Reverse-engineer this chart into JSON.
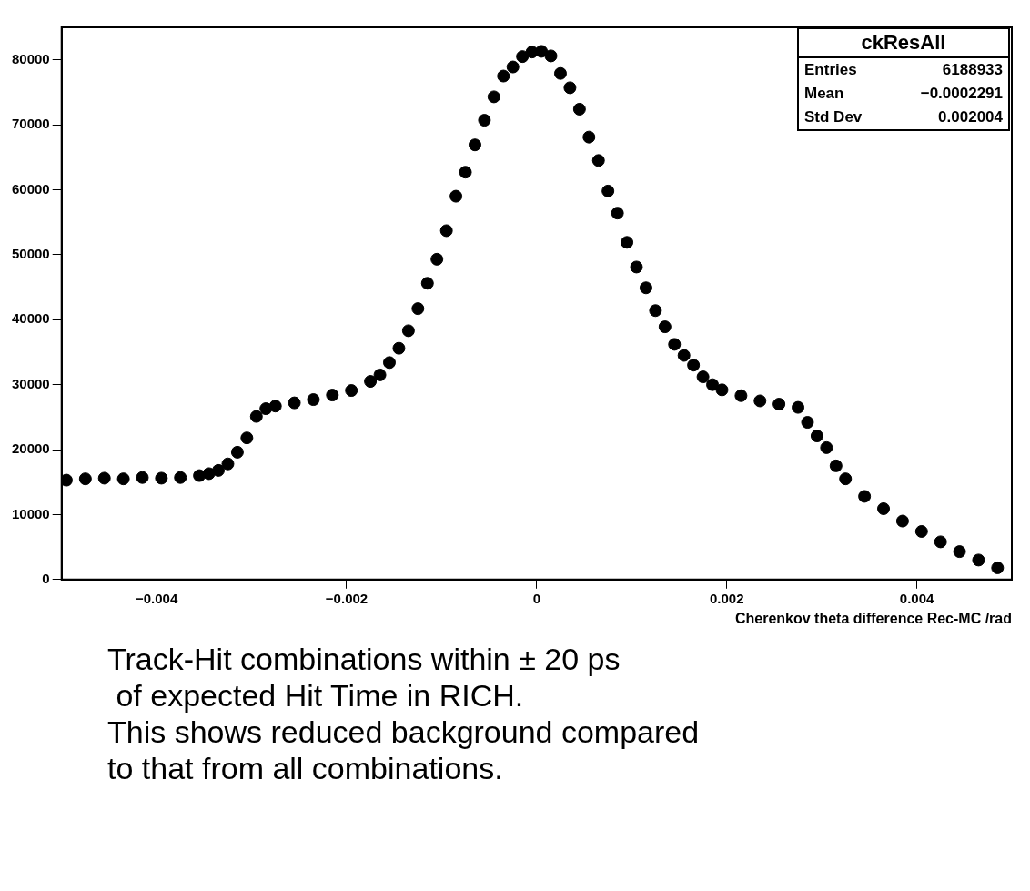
{
  "chart_data": {
    "type": "scatter",
    "title": "ckResAll",
    "xlabel": "Cherenkov theta difference Rec-MC /rad",
    "xlim": [
      -0.005,
      0.005
    ],
    "ylim": [
      0,
      85000
    ],
    "xticks": [
      {
        "value": -0.004,
        "label": "−0.004"
      },
      {
        "value": -0.002,
        "label": "−0.002"
      },
      0,
      0.002,
      0.004
    ],
    "yticks": [
      0,
      10000,
      20000,
      30000,
      40000,
      50000,
      60000,
      70000,
      80000
    ],
    "grid": false,
    "legend": false,
    "marker": "circle",
    "series": [
      {
        "color": "#000000",
        "x": [
          -0.00495,
          -0.00475,
          -0.00455,
          -0.00435,
          -0.00415,
          -0.00395,
          -0.00375,
          -0.00355,
          -0.00345,
          -0.00335,
          -0.00325,
          -0.00315,
          -0.00305,
          -0.00295,
          -0.00285,
          -0.00275,
          -0.00255,
          -0.00235,
          -0.00215,
          -0.00195,
          -0.00175,
          -0.00165,
          -0.00155,
          -0.00145,
          -0.00135,
          -0.00125,
          -0.00115,
          -0.00105,
          -0.00095,
          -0.00085,
          -0.00075,
          -0.00065,
          -0.00055,
          -0.00045,
          -0.00035,
          -0.00025,
          -0.00015,
          -5e-05,
          5e-05,
          0.00015,
          0.00025,
          0.00035,
          0.00045,
          0.00055,
          0.00065,
          0.00075,
          0.00085,
          0.00095,
          0.00105,
          0.00115,
          0.00125,
          0.00135,
          0.00145,
          0.00155,
          0.00165,
          0.00175,
          0.00185,
          0.00195,
          0.00215,
          0.00235,
          0.00255,
          0.00275,
          0.00285,
          0.00295,
          0.00305,
          0.00315,
          0.00325,
          0.00345,
          0.00365,
          0.00385,
          0.00405,
          0.00425,
          0.00445,
          0.00465,
          0.00485
        ],
        "values": [
          15300,
          15500,
          15600,
          15500,
          15700,
          15600,
          15700,
          16000,
          16300,
          16800,
          17800,
          19600,
          21800,
          25100,
          26300,
          26700,
          27200,
          27700,
          28400,
          29100,
          30500,
          31500,
          33400,
          35600,
          38300,
          41700,
          45600,
          49300,
          53700,
          59000,
          62700,
          66900,
          70700,
          74300,
          77500,
          78900,
          80500,
          81200,
          81300,
          80600,
          77900,
          75700,
          72400,
          68100,
          64500,
          59800,
          56400,
          51900,
          48100,
          44900,
          41400,
          38900,
          36200,
          34500,
          33000,
          31200,
          30000,
          29200,
          28300,
          27500,
          27000,
          26500,
          24200,
          22100,
          20300,
          17500,
          15500,
          12800,
          10900,
          9000,
          7400,
          5800,
          4300,
          3000,
          1800
        ]
      }
    ],
    "annotations": [
      "Entries 6188933",
      "Mean −0.0002291",
      "Std Dev 0.002004",
      "Track-Hit combinations within ± 20 ps",
      " of expected Hit Time in RICH.",
      "This shows reduced background compared",
      "to that from all combinations."
    ]
  }
}
